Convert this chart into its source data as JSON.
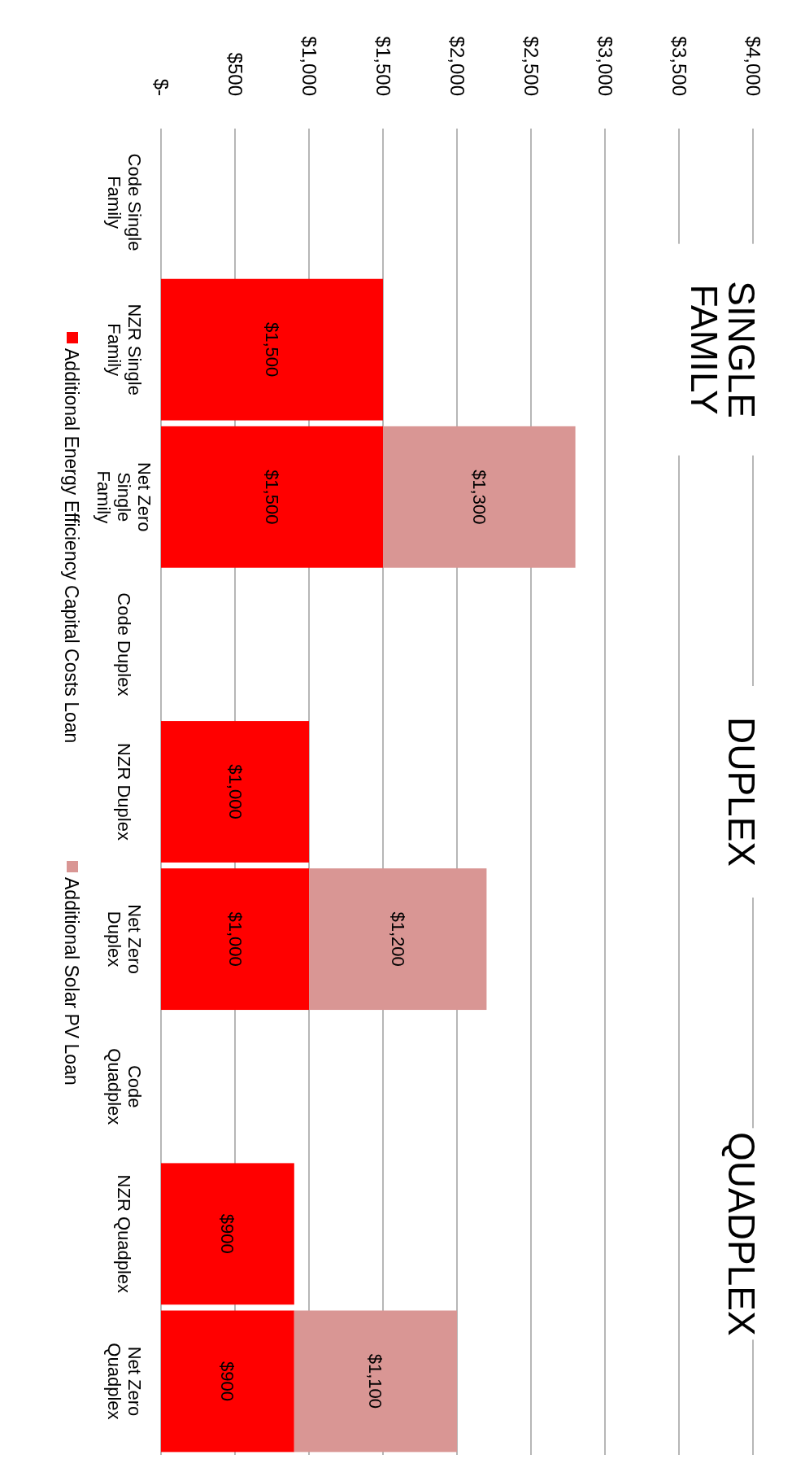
{
  "chart_data": {
    "type": "bar",
    "stacked": true,
    "categories": [
      "Code Single Family",
      "NZR Single Family",
      "Net Zero Single Family",
      "Code Duplex",
      "NZR Duplex",
      "Net Zero Duplex",
      "Code Quadplex",
      "NZR Quadplex",
      "Net Zero Quadplex"
    ],
    "series": [
      {
        "name": "Additional Energy Efficiency Capital Costs  Loan",
        "color": "#ff0000",
        "values": [
          null,
          1500,
          1500,
          null,
          1000,
          1000,
          null,
          900,
          900
        ],
        "value_labels": [
          null,
          "$1,500",
          "$1,500",
          null,
          "$1,000",
          "$1,000",
          null,
          "$900",
          "$900"
        ]
      },
      {
        "name": "Additional Solar PV Loan",
        "color": "#d99694",
        "values": [
          null,
          null,
          1300,
          null,
          null,
          1200,
          null,
          null,
          1100
        ],
        "value_labels": [
          null,
          null,
          "$1,300",
          null,
          null,
          "$1,200",
          null,
          null,
          "$1,100"
        ]
      }
    ],
    "orientation": "horizontal",
    "xlim": [
      0,
      4000
    ],
    "xticks": [
      {
        "value": 0,
        "label": "$-"
      },
      {
        "value": 500,
        "label": "$500"
      },
      {
        "value": 1000,
        "label": "$1,000"
      },
      {
        "value": 1500,
        "label": "$1,500"
      },
      {
        "value": 2000,
        "label": "$2,000"
      },
      {
        "value": 2500,
        "label": "$2,500"
      },
      {
        "value": 3000,
        "label": "$3,000"
      },
      {
        "value": 3500,
        "label": "$3,500"
      },
      {
        "value": 4000,
        "label": "$4,000"
      }
    ],
    "grid": "x",
    "legend": "left",
    "annotations": [
      "SINGLE FAMILY",
      "DUPLEX",
      "QUADPLEX"
    ]
  }
}
